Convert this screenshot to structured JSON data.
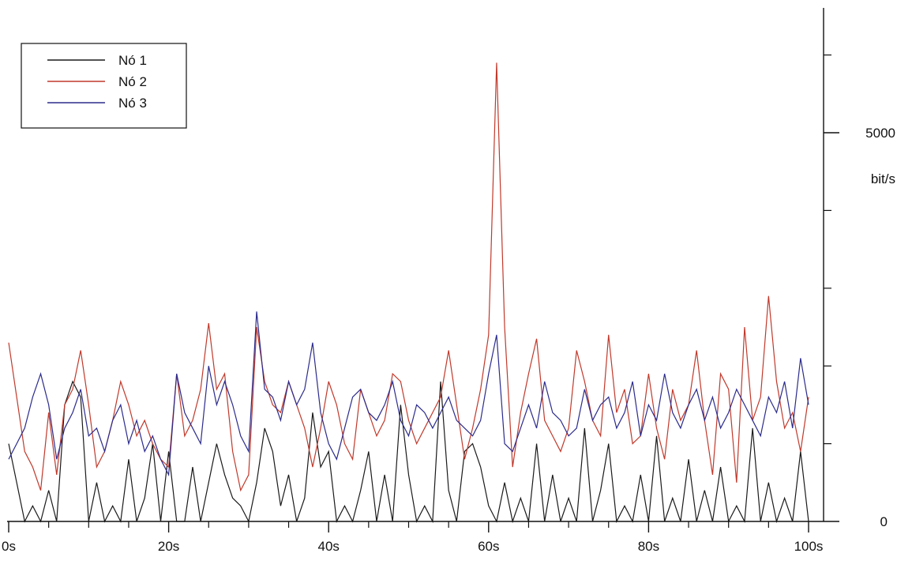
{
  "chart_data": {
    "type": "line",
    "title": "",
    "xlabel": "",
    "ylabel": "bit/s",
    "xlim": [
      0,
      102
    ],
    "ylim": [
      0,
      6300
    ],
    "x_ticks": [
      {
        "value": 0,
        "label": "0s"
      },
      {
        "value": 20,
        "label": "20s"
      },
      {
        "value": 40,
        "label": "40s"
      },
      {
        "value": 60,
        "label": "60s"
      },
      {
        "value": 80,
        "label": "80s"
      },
      {
        "value": 100,
        "label": "100s"
      }
    ],
    "x_minor_ticks": [
      5,
      10,
      15,
      25,
      30,
      35,
      45,
      50,
      55,
      65,
      70,
      75,
      85,
      90,
      95
    ],
    "y_ticks": [
      {
        "value": 0,
        "label": "0"
      },
      {
        "value": 5000,
        "label": "5000"
      }
    ],
    "y_minor_ticks": [
      1000,
      2000,
      3000,
      4000,
      6000
    ],
    "grid": false,
    "legend_position": "top-left",
    "series": [
      {
        "name": "Nó 1",
        "color": "#1a1a1a",
        "values": [
          1000,
          500,
          0,
          200,
          0,
          400,
          0,
          1500,
          1800,
          1600,
          0,
          500,
          0,
          200,
          0,
          800,
          0,
          300,
          1000,
          0,
          900,
          0,
          0,
          700,
          0,
          500,
          1000,
          600,
          300,
          200,
          0,
          500,
          1200,
          900,
          200,
          600,
          0,
          300,
          1400,
          700,
          900,
          0,
          200,
          0,
          400,
          900,
          0,
          600,
          0,
          1500,
          600,
          0,
          200,
          0,
          1800,
          400,
          0,
          900,
          1000,
          700,
          200,
          0,
          500,
          0,
          300,
          0,
          1000,
          0,
          600,
          0,
          300,
          0,
          1200,
          0,
          400,
          1000,
          0,
          200,
          0,
          600,
          0,
          1100,
          0,
          300,
          0,
          800,
          0,
          400,
          0,
          700,
          0,
          200,
          0,
          1200,
          0,
          500,
          0,
          300,
          0,
          900,
          0
        ]
      },
      {
        "name": "Nó 2",
        "color": "#c0392b",
        "values": [
          2300,
          1600,
          900,
          700,
          400,
          1400,
          600,
          1500,
          1700,
          2200,
          1500,
          700,
          900,
          1300,
          1800,
          1500,
          1100,
          1300,
          1000,
          800,
          700,
          1900,
          1100,
          1300,
          1700,
          2550,
          1700,
          1900,
          900,
          400,
          600,
          2500,
          1800,
          1500,
          1400,
          1800,
          1500,
          1200,
          700,
          1200,
          1800,
          1500,
          1000,
          800,
          1700,
          1400,
          1100,
          1300,
          1900,
          1800,
          1300,
          1000,
          1200,
          1400,
          1600,
          2200,
          1500,
          800,
          1200,
          1700,
          2400,
          5900,
          2500,
          700,
          1400,
          1900,
          2350,
          1300,
          1100,
          900,
          1200,
          2200,
          1800,
          1300,
          1100,
          2400,
          1400,
          1700,
          1000,
          1100,
          1900,
          1200,
          800,
          1700,
          1300,
          1500,
          2200,
          1300,
          600,
          1900,
          1700,
          500,
          2500,
          1300,
          1600,
          2900,
          1800,
          1200,
          1400,
          900,
          1600
        ]
      },
      {
        "name": "Nó 3",
        "color": "#2b2b8c",
        "values": [
          800,
          1000,
          1200,
          1600,
          1900,
          1500,
          800,
          1200,
          1400,
          1700,
          1100,
          1200,
          900,
          1300,
          1500,
          1000,
          1300,
          900,
          1100,
          800,
          600,
          1900,
          1400,
          1200,
          1000,
          2000,
          1500,
          1800,
          1500,
          1100,
          900,
          2700,
          1700,
          1600,
          1300,
          1800,
          1500,
          1700,
          2300,
          1400,
          1000,
          800,
          1200,
          1600,
          1700,
          1400,
          1300,
          1500,
          1800,
          1300,
          1100,
          1500,
          1400,
          1200,
          1400,
          1600,
          1300,
          1200,
          1100,
          1300,
          1900,
          2400,
          1000,
          900,
          1200,
          1500,
          1200,
          1800,
          1400,
          1300,
          1100,
          1200,
          1700,
          1300,
          1500,
          1600,
          1200,
          1400,
          1800,
          1100,
          1500,
          1300,
          1900,
          1400,
          1200,
          1500,
          1700,
          1300,
          1600,
          1200,
          1400,
          1700,
          1500,
          1300,
          1100,
          1600,
          1400,
          1800,
          1200,
          2100,
          1500
        ]
      }
    ]
  }
}
